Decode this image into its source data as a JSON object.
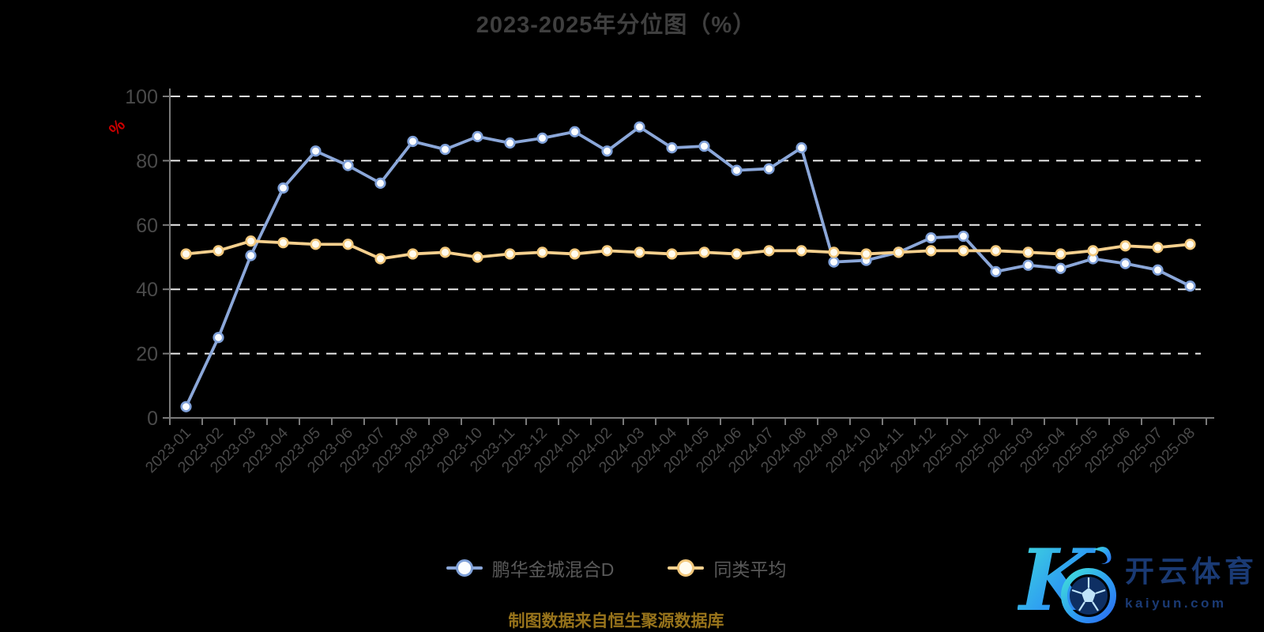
{
  "title": "2023-2025年分位图（%）",
  "y_axis_unit": "%",
  "footer_note": "制图数据来自恒生聚源数据库",
  "legend": {
    "items": [
      {
        "label": "鹏华金城混合D"
      },
      {
        "label": "同类平均"
      }
    ]
  },
  "logo": {
    "monogram": "K",
    "brand_cn": "开云体育",
    "domain": "kaiyun.com"
  },
  "colors": {
    "background": "#000000",
    "title_text": "#3f3f3f",
    "axis_line": "#7a7a7a",
    "axis_label": "#4a4a4a",
    "gridline": "#ececec",
    "y_unit_label": "#cc0000",
    "legend_text": "#595959",
    "footer_text": "#97731b",
    "series_blue": "#8ba7d9",
    "series_blue_marker": "#7fa0d8",
    "series_yellow": "#f6d08e",
    "series_yellow_marker": "#f2c87c",
    "logo_navy": "#1a3a74",
    "logo_gradient_start": "#41e0d8",
    "logo_gradient_end": "#2b6cf0"
  },
  "chart_data": {
    "type": "line",
    "title": "2023-2025年分位图（%）",
    "xlabel": "",
    "ylabel": "%",
    "ylim": [
      0,
      100
    ],
    "yticks": [
      0,
      20,
      40,
      60,
      80,
      100
    ],
    "grid": "horizontal-dashed",
    "legend_position": "bottom",
    "categories": [
      "2023-01",
      "2023-02",
      "2023-03",
      "2023-04",
      "2023-05",
      "2023-06",
      "2023-07",
      "2023-08",
      "2023-09",
      "2023-10",
      "2023-11",
      "2023-12",
      "2024-01",
      "2024-02",
      "2024-03",
      "2024-04",
      "2024-05",
      "2024-06",
      "2024-07",
      "2024-08",
      "2024-09",
      "2024-10",
      "2024-11",
      "2024-12",
      "2025-01",
      "2025-02",
      "2025-03",
      "2025-04",
      "2025-05",
      "2025-06",
      "2025-07",
      "2025-08"
    ],
    "series": [
      {
        "name": "鹏华金城混合D",
        "color": "#8ba7d9",
        "marker_color": "#7fa0d8",
        "marker_fill": "#fbfdff",
        "values": [
          3.5,
          25,
          50.5,
          71.5,
          83,
          78.5,
          73,
          86,
          83.5,
          87.5,
          85.5,
          87,
          89,
          83,
          90.5,
          84,
          84.5,
          77,
          77.5,
          84,
          48.5,
          49,
          51.5,
          56,
          56.5,
          45.5,
          47.5,
          46.5,
          49.5,
          48,
          46,
          41
        ]
      },
      {
        "name": "同类平均",
        "color": "#f6d08e",
        "marker_color": "#f2c87c",
        "marker_fill": "#fffbee",
        "values": [
          51,
          52,
          55,
          54.5,
          54,
          54,
          49.5,
          51,
          51.5,
          50,
          51,
          51.5,
          51,
          52,
          51.5,
          51,
          51.5,
          51,
          52,
          52,
          51.5,
          51,
          51.5,
          52,
          52,
          52,
          51.5,
          51,
          52,
          53.5,
          53,
          54
        ]
      }
    ]
  }
}
